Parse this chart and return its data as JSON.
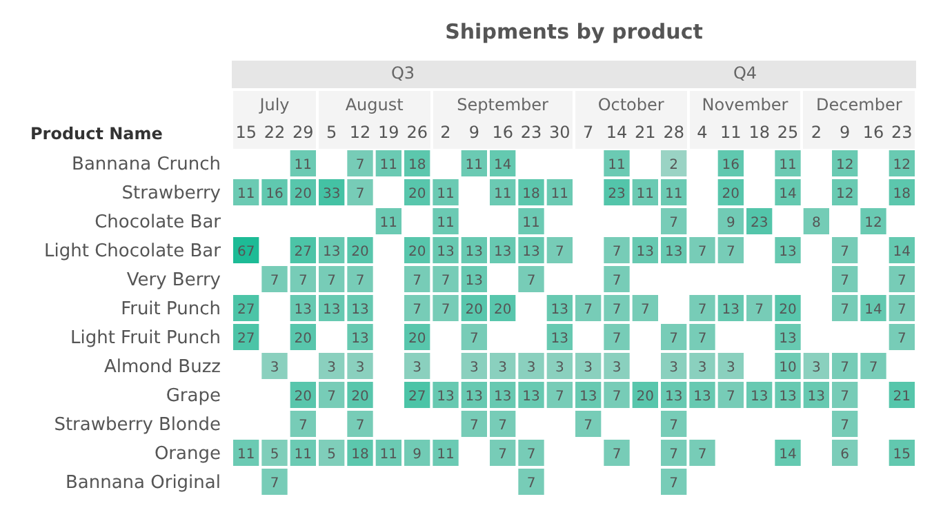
{
  "chart_data": {
    "type": "heatmap",
    "title": "Shipments by product",
    "ylabel": "Product Name",
    "annotations": [
      "Q3",
      "Q4",
      "July",
      "August",
      "September",
      "October",
      "November",
      "December"
    ],
    "categories": [
      "15",
      "22",
      "29",
      "5",
      "12",
      "19",
      "26",
      "2",
      "9",
      "16",
      "23",
      "30",
      "7",
      "14",
      "21",
      "28",
      "4",
      "11",
      "18",
      "25",
      "2",
      "9",
      "16",
      "23"
    ],
    "y_categories": [
      "Bannana Crunch",
      "Strawberry",
      "Chocolate Bar",
      "Light Chocolate Bar",
      "Very Berry",
      "Fruit Punch",
      "Light Fruit Punch",
      "Almond Buzz",
      "Grape",
      "Strawberry Blonde",
      "Orange",
      "Bannana Original"
    ],
    "cells": [
      [
        null,
        null,
        11,
        null,
        7,
        11,
        18,
        null,
        11,
        14,
        null,
        null,
        null,
        11,
        null,
        2,
        null,
        16,
        null,
        11,
        null,
        12,
        null,
        12
      ],
      [
        11,
        16,
        20,
        33,
        7,
        null,
        20,
        11,
        null,
        11,
        18,
        11,
        null,
        23,
        11,
        11,
        null,
        20,
        null,
        14,
        null,
        12,
        null,
        18
      ],
      [
        null,
        null,
        null,
        null,
        null,
        11,
        null,
        11,
        null,
        null,
        11,
        null,
        null,
        null,
        null,
        7,
        null,
        9,
        23,
        null,
        8,
        null,
        12,
        null
      ],
      [
        67,
        null,
        27,
        13,
        20,
        null,
        20,
        13,
        13,
        13,
        13,
        7,
        null,
        7,
        13,
        13,
        7,
        7,
        null,
        13,
        null,
        7,
        null,
        14
      ],
      [
        null,
        7,
        7,
        7,
        7,
        null,
        7,
        7,
        13,
        null,
        7,
        null,
        null,
        7,
        null,
        null,
        null,
        null,
        null,
        null,
        null,
        7,
        null,
        7
      ],
      [
        27,
        null,
        13,
        13,
        13,
        null,
        7,
        7,
        20,
        20,
        null,
        13,
        7,
        7,
        7,
        null,
        7,
        13,
        7,
        20,
        null,
        7,
        14,
        7
      ],
      [
        27,
        null,
        20,
        null,
        13,
        null,
        20,
        null,
        7,
        null,
        null,
        13,
        null,
        7,
        null,
        7,
        7,
        null,
        null,
        13,
        null,
        null,
        null,
        7
      ],
      [
        null,
        3,
        null,
        3,
        3,
        null,
        3,
        null,
        3,
        3,
        3,
        3,
        3,
        3,
        null,
        3,
        3,
        3,
        null,
        10,
        3,
        7,
        7,
        null
      ],
      [
        null,
        null,
        20,
        7,
        20,
        null,
        27,
        13,
        13,
        13,
        13,
        7,
        13,
        7,
        20,
        13,
        13,
        7,
        13,
        13,
        13,
        7,
        null,
        21
      ],
      [
        null,
        null,
        7,
        null,
        7,
        null,
        null,
        null,
        7,
        7,
        null,
        null,
        7,
        null,
        null,
        7,
        null,
        null,
        null,
        null,
        null,
        7,
        null,
        null
      ],
      [
        11,
        5,
        11,
        5,
        18,
        11,
        9,
        11,
        null,
        7,
        7,
        null,
        null,
        7,
        null,
        7,
        7,
        null,
        null,
        14,
        null,
        6,
        null,
        15
      ],
      [
        null,
        7,
        null,
        null,
        null,
        null,
        null,
        null,
        null,
        null,
        7,
        null,
        null,
        null,
        null,
        7,
        null,
        null,
        null,
        null,
        null,
        null,
        null,
        null
      ]
    ],
    "data_labels": true
  }
}
